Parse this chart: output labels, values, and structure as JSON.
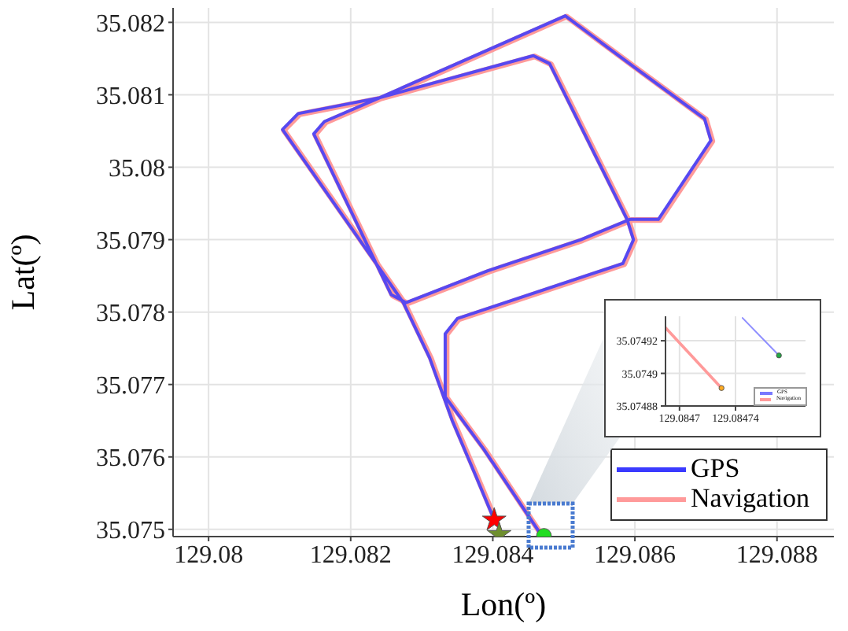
{
  "chart_data": [
    {
      "type": "line",
      "xlabel": "Lon(º)",
      "ylabel": "Lat(º)",
      "xlim": [
        129.0795,
        129.0888
      ],
      "ylim": [
        35.0749,
        35.0822
      ],
      "xticks": [
        129.08,
        129.082,
        129.084,
        129.086,
        129.088
      ],
      "yticks": [
        35.075,
        35.076,
        35.077,
        35.078,
        35.079,
        35.08,
        35.081,
        35.082
      ],
      "grid": true,
      "legend": "bottom right",
      "marker": "none",
      "series": [
        {
          "name": "GPS",
          "color": "#3a3aff",
          "x": [
            129.08402,
            129.08376,
            129.08343,
            129.08311,
            129.08274,
            129.08228,
            129.08104,
            129.08126,
            129.08241,
            129.08502,
            129.08598,
            129.08698,
            129.08707,
            129.08633,
            129.08593,
            129.08524,
            129.08393,
            129.08278,
            129.08257,
            129.08148,
            129.08163,
            129.08241,
            129.08457,
            129.0848,
            129.08589,
            129.08598,
            129.08583,
            129.0835,
            129.08333,
            129.08333,
            129.08387,
            129.08467
          ],
          "values": [
            35.07513,
            35.07574,
            35.0765,
            35.07737,
            35.07813,
            35.07878,
            35.08052,
            35.08074,
            35.08096,
            35.08209,
            35.08139,
            35.08067,
            35.08037,
            35.07928,
            35.07928,
            35.079,
            35.07857,
            35.07813,
            35.07824,
            35.08046,
            35.08063,
            35.08096,
            35.08154,
            35.08143,
            35.07928,
            35.079,
            35.07867,
            35.07791,
            35.0777,
            35.07683,
            35.07611,
            35.07494
          ]
        },
        {
          "name": "Navigation",
          "color": "#ff9a9a",
          "x": [
            129.08404,
            129.08378,
            129.08345,
            129.08313,
            129.08276,
            129.0823,
            129.08106,
            129.08128,
            129.08243,
            129.08504,
            129.086,
            129.087,
            129.08709,
            129.08635,
            129.08595,
            129.08526,
            129.08395,
            129.0828,
            129.08259,
            129.0815,
            129.08165,
            129.08243,
            129.08459,
            129.08482,
            129.08591,
            129.086,
            129.08585,
            129.08352,
            129.08335,
            129.08335,
            129.08389,
            129.08469
          ],
          "values": [
            35.07512,
            35.07573,
            35.07649,
            35.07736,
            35.07812,
            35.07877,
            35.08051,
            35.08073,
            35.08095,
            35.08208,
            35.08138,
            35.08066,
            35.08036,
            35.07927,
            35.07927,
            35.07899,
            35.07856,
            35.07812,
            35.07823,
            35.08045,
            35.08062,
            35.08095,
            35.08153,
            35.08142,
            35.07927,
            35.07899,
            35.07866,
            35.0779,
            35.07769,
            35.07682,
            35.0761,
            35.07492
          ]
        },
        {
          "type": "scatter",
          "marker": "star",
          "color": "#ff0000",
          "x": [
            129.08402
          ],
          "values": [
            35.07513
          ]
        },
        {
          "type": "scatter",
          "marker": "star",
          "color": "#6f8f2f",
          "x": [
            129.08409
          ],
          "values": [
            35.07493
          ]
        },
        {
          "type": "scatter",
          "marker": "circle",
          "color": "#22dd22",
          "x": [
            129.08472
          ],
          "values": [
            35.07491
          ]
        }
      ]
    },
    {
      "type": "line",
      "xlim": [
        129.08469,
        129.08479
      ],
      "ylim": [
        35.07488,
        35.074935
      ],
      "xticks": [
        129.0847,
        129.08474
      ],
      "yticks": [
        35.07488,
        35.0749,
        35.07492
      ],
      "grid": true,
      "legend": "bottom right",
      "marker": "none",
      "series": [
        {
          "name": "GPS",
          "color": "#7a7aff",
          "x": [
            129.084745,
            129.084771
          ],
          "values": [
            35.074934,
            35.074911
          ]
        },
        {
          "name": "Navigation",
          "color": "#ff9a9a",
          "x": [
            129.08469,
            129.08473
          ],
          "values": [
            35.074928,
            35.074891
          ]
        },
        {
          "type": "scatter",
          "marker": "circle",
          "color": "#22aa44",
          "x": [
            129.084771
          ],
          "values": [
            35.074911
          ]
        },
        {
          "type": "scatter",
          "marker": "circle",
          "color": "#ffaa22",
          "x": [
            129.08473
          ],
          "values": [
            35.074891
          ]
        }
      ]
    }
  ]
}
